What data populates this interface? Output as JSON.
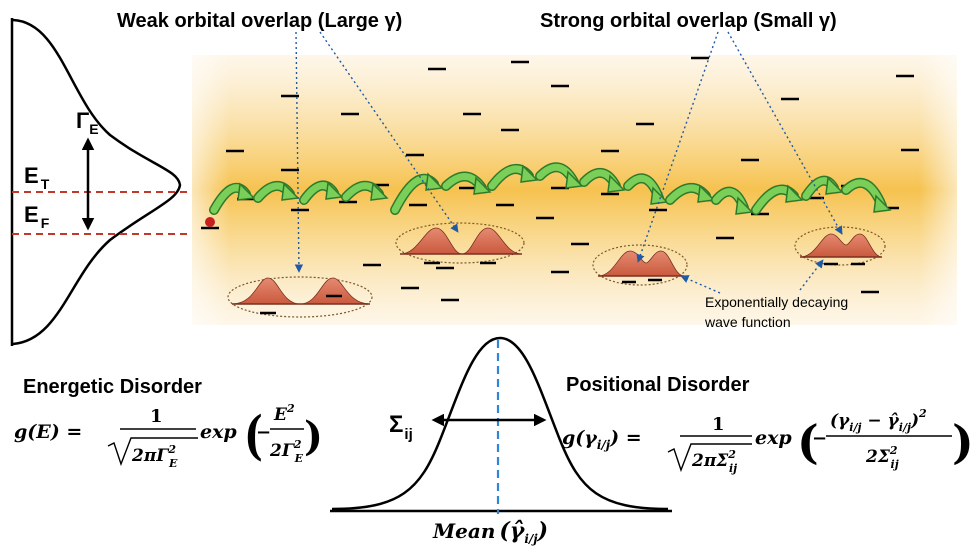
{
  "title_weak": "Weak orbital overlap (Large γ)",
  "title_strong": "Strong orbital overlap (Small γ)",
  "label_gamma_e": "Γ",
  "label_gamma_e_sub": "E",
  "label_et": "E",
  "label_et_sub": "T",
  "label_ef": "E",
  "label_ef_sub": "F",
  "note_line1": "Exponentially decaying",
  "note_line2": "wave function",
  "energetic_title": "Energetic Disorder",
  "positional_title": "Positional Disorder",
  "sigma_label": "Σ",
  "sigma_sub": "ij",
  "mean_label": "Mean",
  "mean_arg": "(γ̂",
  "mean_arg_sub": "i/j",
  "mean_arg_close": ")",
  "eq_energetic": {
    "lhs": "g(E) =",
    "num": "1",
    "den": "2πΓ",
    "den_sup": "2",
    "den_sub": "E",
    "fn": "exp",
    "inner_num": "E",
    "inner_num_sup": "2",
    "inner_den": "2Γ",
    "inner_den_sup": "2",
    "inner_den_sub": "E"
  },
  "eq_positional": {
    "lhs": "g(γ",
    "lhs_sub": "i/j",
    "lhs_close": ") =",
    "num": "1",
    "den": "2πΣ",
    "den_sup": "2",
    "den_sub": "ij",
    "fn": "exp",
    "inner_num_a": "(γ",
    "inner_num_a_sub": "i/j",
    "inner_num_b": " − γ̂",
    "inner_num_b_sub": "i/j",
    "inner_num_close": ")",
    "inner_num_sup": "2",
    "inner_den": "2Σ",
    "inner_den_sup": "2",
    "inner_den_sub": "ij"
  },
  "colors": {
    "band": "#f8c95a",
    "hop_arrow": "#6cc04a",
    "hop_arrow_edge": "#2f7a2a",
    "orbital": "#d9735a",
    "dashed_red": "#c0392b",
    "mean_line": "#2f86d6",
    "pointer": "#1f5aa6",
    "carrier": "#c81e1e"
  }
}
